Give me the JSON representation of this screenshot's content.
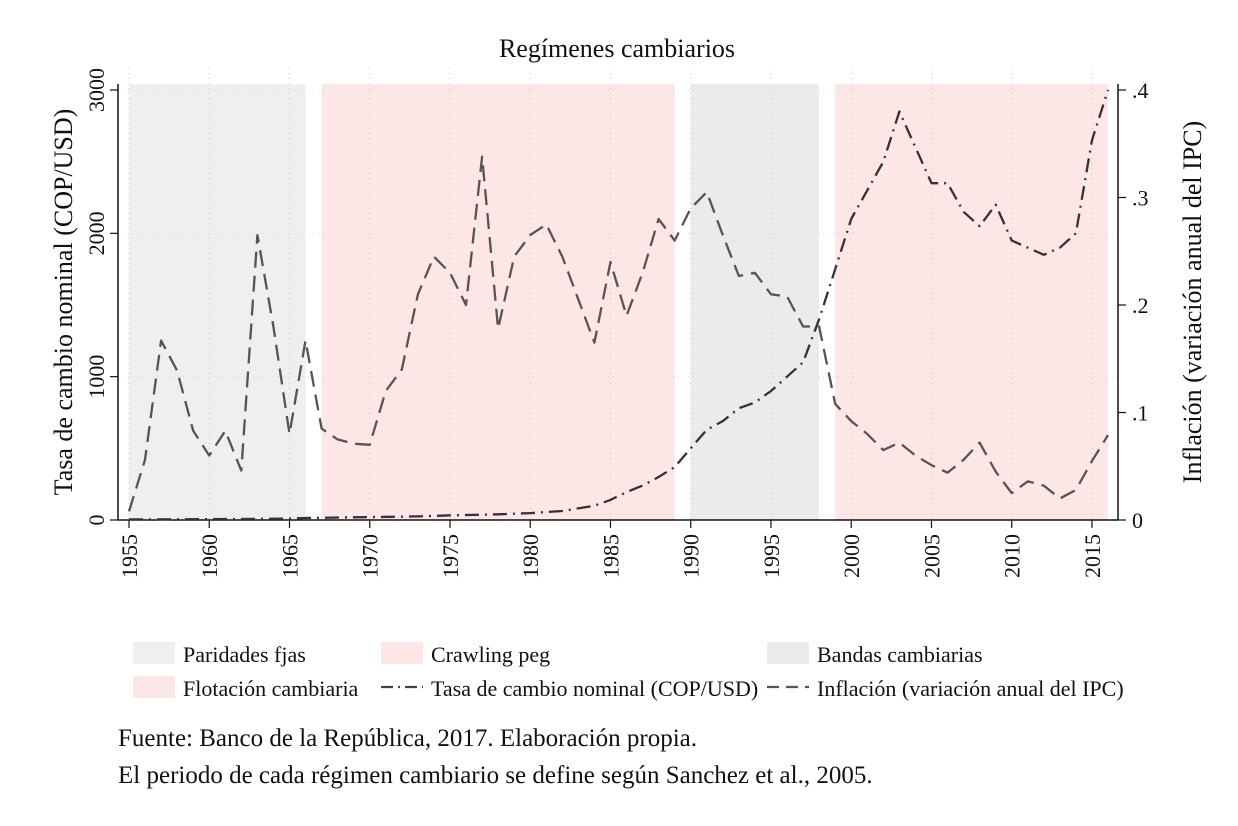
{
  "chart_data": {
    "type": "line",
    "title": "Regímenes cambiarios",
    "ylabel_left": "Tasa de cambio nominal (COP/USD)",
    "ylabel_right": "Inflación (variación anual del IPC)",
    "xlim": [
      1955,
      2016
    ],
    "ylim_left": [
      0,
      3000
    ],
    "ylim_right": [
      0,
      0.4
    ],
    "x_ticks": [
      "1955",
      "1960",
      "1965",
      "1970",
      "1975",
      "1980",
      "1985",
      "1990",
      "1995",
      "2000",
      "2005",
      "2010",
      "2015"
    ],
    "y_left_ticks": [
      "0",
      "1000",
      "2000",
      "3000"
    ],
    "y_right_ticks": [
      "0",
      ".1",
      ".2",
      ".3",
      ".4"
    ],
    "regimes": [
      {
        "name": "Paridades fjas",
        "start": 1955,
        "end": 1966,
        "color": "#efefef"
      },
      {
        "name": "Crawling peg",
        "start": 1967,
        "end": 1989,
        "color": "#fde6e6"
      },
      {
        "name": "Bandas cambiarias",
        "start": 1990,
        "end": 1998,
        "color": "#ebebeb"
      },
      {
        "name": "Flotación cambiaria",
        "start": 1999,
        "end": 2016,
        "color": "#fde6e6"
      }
    ],
    "series": [
      {
        "name": "Tasa de cambio nominal (COP/USD)",
        "axis": "left",
        "dash": "dashdot",
        "x": [
          1955,
          1958,
          1962,
          1965,
          1966,
          1970,
          1973,
          1975,
          1978,
          1980,
          1982,
          1984,
          1985,
          1986,
          1987,
          1988,
          1989,
          1990,
          1991,
          1992,
          1993,
          1994,
          1995,
          1996,
          1997,
          1998,
          1999,
          2000,
          2001,
          2002,
          2003,
          2004,
          2005,
          2006,
          2007,
          2008,
          2009,
          2010,
          2011,
          2012,
          2013,
          2014,
          2015,
          2016
        ],
        "values": [
          4,
          5,
          7,
          10,
          14,
          20,
          25,
          32,
          40,
          48,
          63,
          100,
          140,
          195,
          240,
          300,
          370,
          500,
          630,
          690,
          780,
          820,
          900,
          1000,
          1100,
          1400,
          1750,
          2100,
          2300,
          2500,
          2850,
          2600,
          2350,
          2350,
          2150,
          2050,
          2200,
          1950,
          1900,
          1850,
          1900,
          2000,
          2650,
          3000
        ]
      },
      {
        "name": "Inflación (variación anual del IPC)",
        "axis": "right",
        "dash": "dash",
        "x": [
          1955,
          1956,
          1957,
          1958,
          1959,
          1960,
          1961,
          1962,
          1963,
          1964,
          1965,
          1966,
          1967,
          1968,
          1969,
          1970,
          1971,
          1972,
          1973,
          1974,
          1975,
          1976,
          1977,
          1978,
          1979,
          1980,
          1981,
          1982,
          1983,
          1984,
          1985,
          1986,
          1987,
          1988,
          1989,
          1990,
          1991,
          1992,
          1993,
          1994,
          1995,
          1996,
          1997,
          1998,
          1999,
          2000,
          2001,
          2002,
          2003,
          2004,
          2005,
          2006,
          2007,
          2008,
          2009,
          2010,
          2011,
          2012,
          2013,
          2014,
          2015,
          2016
        ],
        "values": [
          0.008,
          0.056,
          0.167,
          0.139,
          0.083,
          0.06,
          0.083,
          0.046,
          0.265,
          0.18,
          0.08,
          0.167,
          0.085,
          0.075,
          0.071,
          0.07,
          0.12,
          0.14,
          0.21,
          0.245,
          0.23,
          0.2,
          0.338,
          0.178,
          0.245,
          0.265,
          0.275,
          0.245,
          0.205,
          0.165,
          0.24,
          0.19,
          0.23,
          0.28,
          0.26,
          0.29,
          0.305,
          0.265,
          0.227,
          0.23,
          0.21,
          0.208,
          0.18,
          0.18,
          0.108,
          0.092,
          0.08,
          0.065,
          0.072,
          0.06,
          0.051,
          0.044,
          0.056,
          0.072,
          0.045,
          0.025,
          0.036,
          0.032,
          0.02,
          0.028,
          0.055,
          0.079
        ]
      }
    ],
    "legend": [
      {
        "label": "Paridades fjas",
        "kind": "fill",
        "color": "#efefef"
      },
      {
        "label": "Crawling peg",
        "kind": "fill",
        "color": "#fde6e6"
      },
      {
        "label": "Bandas cambiarias",
        "kind": "fill",
        "color": "#ebebeb"
      },
      {
        "label": "Flotación cambiaria",
        "kind": "fill",
        "color": "#fde6e6"
      },
      {
        "label": "Tasa de cambio nominal (COP/USD)",
        "kind": "dashdot",
        "color": "#444444"
      },
      {
        "label": "Inflación (variación anual del IPC)",
        "kind": "dash",
        "color": "#555555"
      }
    ]
  },
  "notes": {
    "source": "Fuente: Banco de la República, 2017. Elaboración propia.",
    "definition": "El periodo de cada régimen cambiario se define según Sanchez et al., 2005."
  }
}
